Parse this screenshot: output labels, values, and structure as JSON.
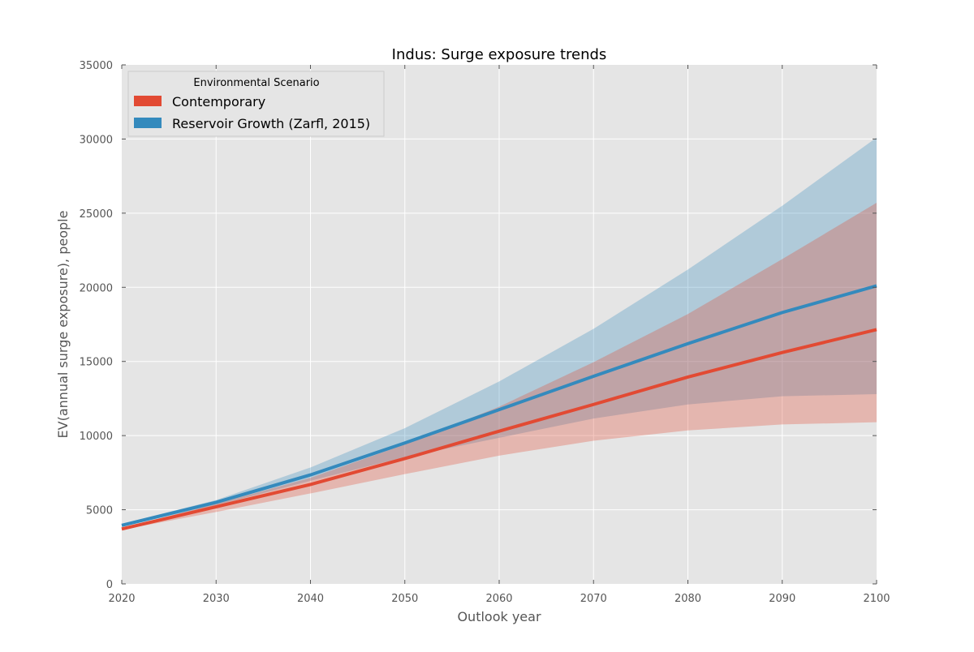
{
  "chart_data": {
    "type": "area",
    "title": "Indus: Surge exposure trends",
    "xlabel": "Outlook year",
    "ylabel": "EV(annual surge exposure), people",
    "xlim": [
      2020,
      2100
    ],
    "ylim": [
      0,
      35000
    ],
    "x_ticks": [
      2020,
      2030,
      2040,
      2050,
      2060,
      2070,
      2080,
      2090,
      2100
    ],
    "y_ticks": [
      0,
      5000,
      10000,
      15000,
      20000,
      25000,
      30000,
      35000
    ],
    "x_tick_labels": [
      "2020",
      "2030",
      "2040",
      "2050",
      "2060",
      "2070",
      "2080",
      "2090",
      "2100"
    ],
    "y_tick_labels": [
      "0",
      "5000",
      "10000",
      "15000",
      "20000",
      "25000",
      "30000",
      "35000"
    ],
    "grid": true,
    "legend": {
      "title": "Environmental Scenario",
      "placement": "top-left"
    },
    "x": [
      2020,
      2030,
      2040,
      2050,
      2060,
      2070,
      2080,
      2090,
      2100
    ],
    "series": [
      {
        "name": "Reservoir Growth (Zarfl, 2015)",
        "color": "#348abd",
        "values": [
          3950,
          5500,
          7350,
          9500,
          11750,
          14000,
          16200,
          18300,
          20100
        ],
        "lower": [
          3850,
          5300,
          6950,
          8550,
          9850,
          11150,
          12100,
          12650,
          12800
        ],
        "upper": [
          4050,
          5650,
          7850,
          10500,
          13650,
          17200,
          21200,
          25500,
          30100
        ]
      },
      {
        "name": "Contemporary",
        "color": "#e24a33",
        "values": [
          3700,
          5200,
          6700,
          8450,
          10300,
          12100,
          13950,
          15600,
          17150
        ],
        "lower": [
          3650,
          4850,
          6100,
          7400,
          8650,
          9650,
          10350,
          10750,
          10900
        ],
        "upper": [
          3750,
          5400,
          7150,
          9400,
          11950,
          14950,
          18200,
          21900,
          25700
        ]
      }
    ]
  }
}
